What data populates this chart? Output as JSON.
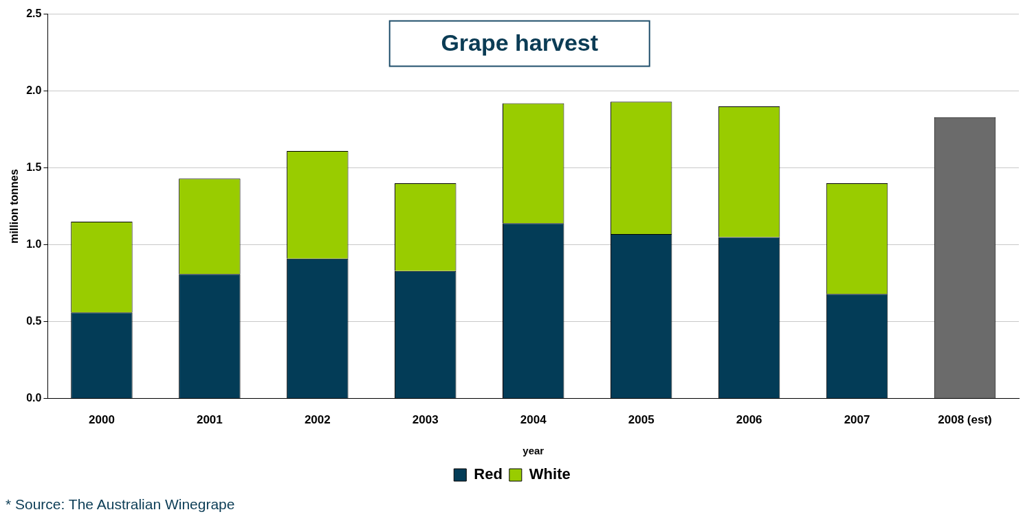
{
  "chart_data": {
    "type": "bar",
    "title": "Grape harvest",
    "xlabel": "year",
    "ylabel": "million tonnes",
    "categories": [
      "2000",
      "2001",
      "2002",
      "2003",
      "2004",
      "2005",
      "2006",
      "2007",
      "2008 (est)"
    ],
    "stacked": true,
    "series": [
      {
        "name": "Red",
        "color": "#033c57",
        "values": [
          0.56,
          0.81,
          0.91,
          0.83,
          1.14,
          1.07,
          1.05,
          0.68,
          null
        ]
      },
      {
        "name": "White",
        "color": "#99cc00",
        "values": [
          0.59,
          0.62,
          0.7,
          0.57,
          0.78,
          0.86,
          0.85,
          0.72,
          null
        ]
      },
      {
        "color": "#6b6b6b",
        "values": [
          null,
          null,
          null,
          null,
          null,
          null,
          null,
          null,
          1.83
        ]
      }
    ],
    "ylim": [
      0,
      2.5
    ],
    "yticks": [
      {
        "value": 0,
        "label": "0.0"
      },
      {
        "value": 0.5,
        "label": "0.5"
      },
      {
        "value": 1,
        "label": "1.0"
      },
      {
        "value": 1.5,
        "label": "1.5"
      },
      {
        "value": 2,
        "label": "2.0"
      },
      {
        "value": 2.5,
        "label": "2.5"
      }
    ],
    "grid": "y",
    "legend": "bottom",
    "annotations": [
      "* Source: The Australian Winegrape"
    ]
  }
}
